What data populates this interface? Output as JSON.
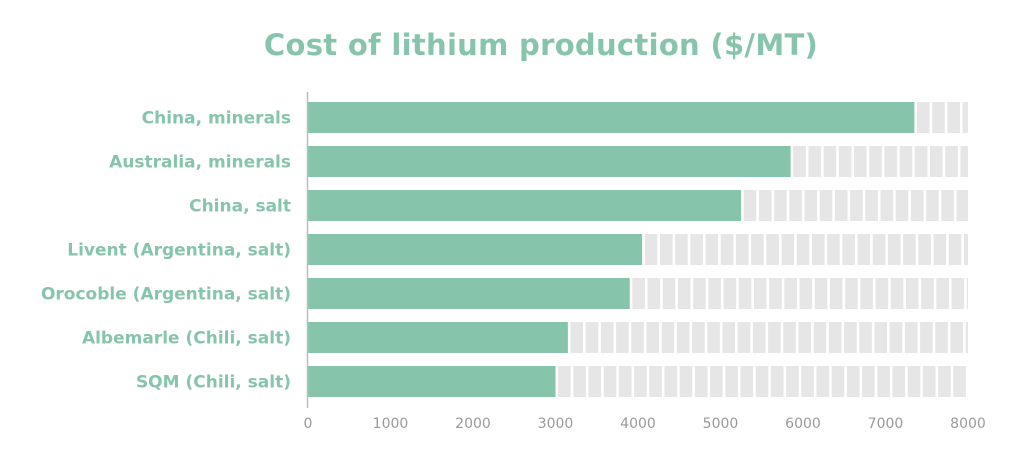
{
  "chart_data": {
    "type": "bar",
    "orientation": "horizontal",
    "title": "Cost of lithium production ($/MT)",
    "categories": [
      "China, minerals",
      "Australia, minerals",
      "China, salt",
      "Livent (Argentina, salt)",
      "Orocoble (Argentina, salt)",
      "Albemarle (Chili, salt)",
      "SQM (Chili, salt)"
    ],
    "values": [
      7350,
      5850,
      5250,
      4050,
      3900,
      3150,
      3000
    ],
    "xlim": [
      0,
      8000
    ],
    "xticks": [
      0,
      1000,
      2000,
      3000,
      4000,
      5000,
      6000,
      7000,
      8000
    ],
    "xlabel": "",
    "ylabel": "",
    "grid": false,
    "colors": {
      "bar": "#86c5ac",
      "remainder": "#e6e6e6",
      "label": "#86c5ac",
      "tick": "#9a9a9a",
      "axis": "#bdbdbd"
    }
  }
}
